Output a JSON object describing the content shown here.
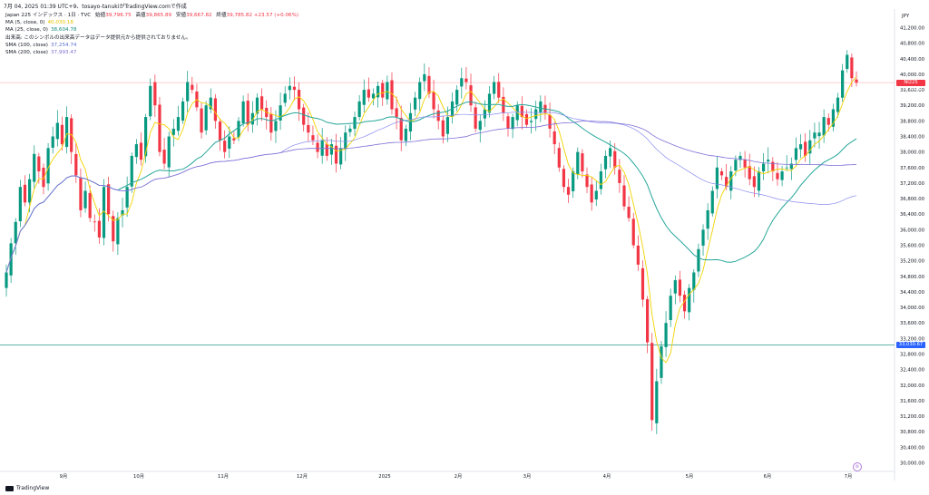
{
  "header": {
    "caption": "7月 04, 2025 01:39 UTC+9、tosayo-tanukiがTradingView.comで作成"
  },
  "legend": {
    "symbol_line": "Japan 225 インデックス · 1日 · TVC",
    "open_label": "始値",
    "open_value": "39,796.75",
    "high_label": "高値",
    "high_value": "39,865.89",
    "low_label": "安値",
    "low_value": "39,667.82",
    "close_label": "終値",
    "close_value": "39,785.82",
    "change": "+23.57 (+0.06%)",
    "indicators": [
      {
        "label": "MA (5, close, 0)",
        "value": "40,030.18",
        "color": "#e6c200"
      },
      {
        "label": "MA (25, close, 0)",
        "value": "38,604.78",
        "color": "#138a7f"
      },
      {
        "label": "出来高: このシンボルの出来高データはデータ提供元から提供されておりません。",
        "value": "",
        "color": "#131722"
      },
      {
        "label": "SMA (100, close)",
        "value": "37,254.74",
        "color": "#5a6fd0"
      },
      {
        "label": "SMA (200, close)",
        "value": "37,993.47",
        "color": "#7d6fd6"
      }
    ]
  },
  "axis": {
    "currency": "JPY",
    "y_ticks": [
      "41,200.00",
      "40,800.00",
      "40,400.00",
      "40,000.00",
      "39,600.00",
      "39,200.00",
      "38,800.00",
      "38,400.00",
      "38,000.00",
      "37,600.00",
      "37,200.00",
      "36,800.00",
      "36,400.00",
      "36,000.00",
      "35,600.00",
      "35,200.00",
      "34,800.00",
      "34,400.00",
      "34,000.00",
      "33,600.00",
      "33,200.00",
      "32,800.00",
      "32,400.00",
      "32,000.00",
      "31,600.00",
      "31,200.00",
      "30,800.00",
      "30,400.00",
      "30,000.00"
    ],
    "x_labels": [
      "9月",
      "10月",
      "11月",
      "12月",
      "2025",
      "2月",
      "3月",
      "4月",
      "5月",
      "6月",
      "7月"
    ]
  },
  "price_tags": {
    "current_label": "NI225",
    "current_value": "39,785.82",
    "line_value": "33,030.67"
  },
  "brand": {
    "name": "TradingView"
  },
  "chart_data": {
    "type": "candlestick",
    "y_range": [
      30000,
      41600
    ],
    "x_tick_labels": [
      "9月",
      "10月",
      "11月",
      "12月",
      "2025",
      "2月",
      "3月",
      "4月",
      "5月",
      "6月",
      "7月"
    ],
    "colors": {
      "up": "#089981",
      "down": "#f23645",
      "ma5": "#f2d300",
      "ma25": "#26a69a",
      "sma100": "#8a8cf0",
      "sma200": "#7d6fd6",
      "hline": "#2d9b8c",
      "current": "#f23645"
    },
    "horizontal_line": 33030.67,
    "current_price": 39785.82,
    "closes": [
      34900,
      35650,
      36200,
      37100,
      36700,
      37300,
      37950,
      37500,
      37100,
      38100,
      38400,
      38750,
      38200,
      38900,
      38000,
      37400,
      36500,
      37000,
      36300,
      36200,
      35800,
      37100,
      36400,
      35700,
      36300,
      36500,
      37100,
      37900,
      38200,
      37800,
      38900,
      39700,
      39200,
      38000,
      37700,
      38400,
      38600,
      38900,
      39300,
      39800,
      39600,
      39150,
      38500,
      39200,
      39400,
      38800,
      38300,
      38000,
      38400,
      38300,
      38800,
      39300,
      38700,
      39000,
      39400,
      39100,
      38900,
      38500,
      38800,
      39200,
      39500,
      39700,
      39600,
      39100,
      38700,
      38500,
      38300,
      38000,
      38300,
      37900,
      38200,
      37700,
      38100,
      38500,
      38600,
      38900,
      39300,
      39600,
      39400,
      39500,
      39700,
      39400,
      39800,
      39100,
      38900,
      38300,
      38600,
      39000,
      39400,
      39800,
      40000,
      39500,
      39100,
      38800,
      38400,
      38900,
      39300,
      39600,
      39900,
      39800,
      39200,
      38600,
      38800,
      39100,
      39500,
      39800,
      39400,
      39000,
      38600,
      38900,
      39200,
      38900,
      38700,
      38800,
      39100,
      39300,
      39000,
      38600,
      38200,
      37600,
      37100,
      36900,
      37500,
      38000,
      37500,
      37100,
      36700,
      37000,
      37500,
      37900,
      38100,
      37600,
      37200,
      36600,
      36300,
      35600,
      35100,
      34200,
      33100,
      31100,
      32100,
      33000,
      33600,
      34300,
      34700,
      34300,
      33900,
      34500,
      34900,
      35500,
      36000,
      36500,
      37000,
      37600,
      37400,
      37100,
      37500,
      37800,
      37900,
      37600,
      37300,
      37100,
      37500,
      37700,
      37800,
      37500,
      37300,
      37500,
      37600,
      37700,
      38100,
      38200,
      37900,
      38300,
      38500,
      38500,
      38900,
      38700,
      39100,
      39400,
      40100,
      40500,
      39900,
      39785
    ]
  }
}
